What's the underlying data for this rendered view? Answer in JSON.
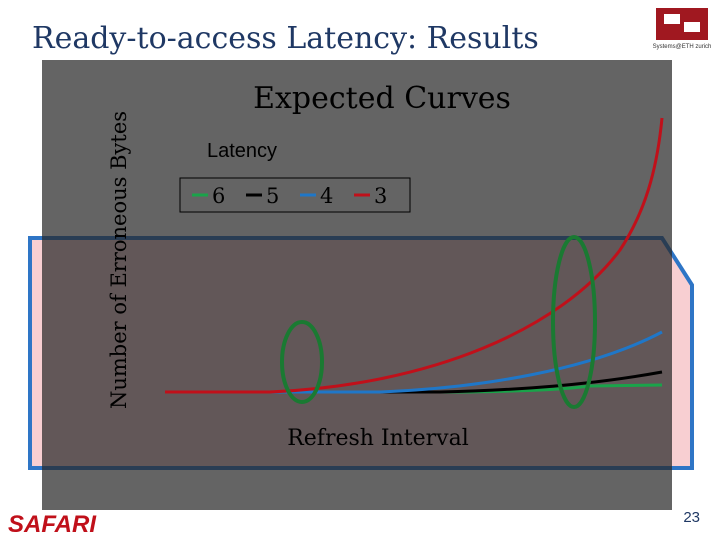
{
  "header": {
    "title": "Ready-to-access Latency: Results",
    "logo": "Systems@ETH zurich"
  },
  "figure": {
    "title": "Expected Curves",
    "legend_title": "Latency",
    "legend": [
      {
        "label": 6,
        "color": "#1aa34a"
      },
      {
        "label": 5,
        "color": "#000000"
      },
      {
        "label": 4,
        "color": "#1f77c8"
      },
      {
        "label": 3,
        "color": "#c0101a"
      }
    ],
    "y_label": "Number of Erroneous Bytes",
    "x_label": "Refresh Interval"
  },
  "footer": {
    "brand": "SAFARI",
    "page": 23
  }
}
